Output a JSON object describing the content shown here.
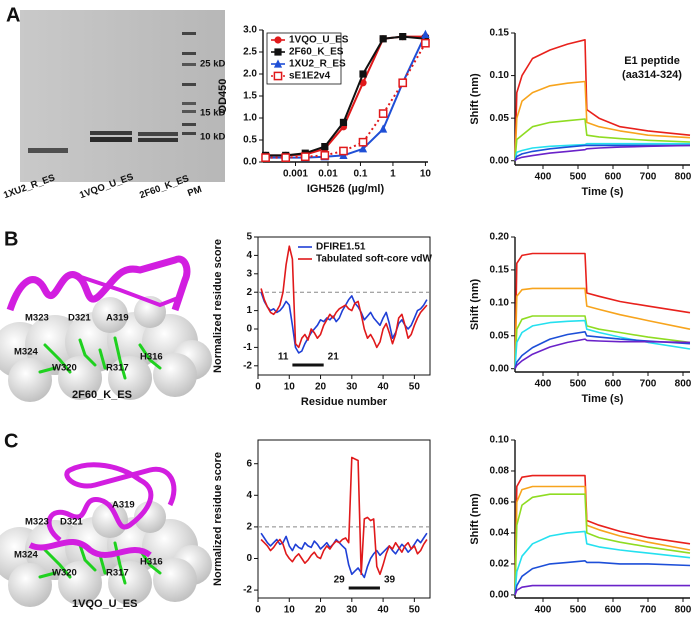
{
  "panel_labels": [
    "A",
    "B",
    "C"
  ],
  "gel": {
    "markers": [
      "25 kD",
      "15 kD",
      "10 kD"
    ],
    "lanes": [
      "1XU2_R_ES",
      "1VQO_U_ES",
      "2F60_K_ES",
      "PM"
    ]
  },
  "structures": [
    {
      "residues": [
        "M323",
        "D321",
        "A319",
        "M324",
        "W320",
        "R317",
        "H316"
      ],
      "caption": "2F60_K_ES"
    },
    {
      "residues": [
        "M323",
        "D321",
        "A319",
        "M324",
        "W320",
        "R317",
        "H316"
      ],
      "caption": "1VQO_U_ES"
    }
  ],
  "chart_data": [
    {
      "type": "scatter",
      "xlabel": "IGH526 (µg/ml)",
      "ylabel": "OD450",
      "xscale": "log",
      "x": [
        0.00012,
        0.0005,
        0.002,
        0.008,
        0.03,
        0.12,
        0.5,
        2,
        10
      ],
      "xlim": [
        0.0001,
        12
      ],
      "xticks": [
        0.001,
        0.01,
        0.1,
        1,
        10
      ],
      "ylim": [
        0,
        3
      ],
      "yticks": [
        {
          "value": 0,
          "label": "0.0"
        },
        {
          "value": 0.5,
          "label": "0.5"
        },
        {
          "value": 1,
          "label": "1.0"
        },
        {
          "value": 1.5,
          "label": "1.5"
        },
        {
          "value": 2,
          "label": "2.0"
        },
        {
          "value": 2.5,
          "label": "2.5"
        },
        {
          "value": 3,
          "label": "3.0"
        }
      ],
      "legend": "upper left",
      "series": [
        {
          "name": "1VQO_U_ES",
          "color": "#e0191b",
          "marker": "circle",
          "line_style": "solid",
          "values": [
            0.15,
            0.15,
            0.17,
            0.3,
            0.8,
            1.8,
            2.8,
            2.85,
            2.85
          ]
        },
        {
          "name": "2F60_K_ES",
          "color": "#111111",
          "marker": "square",
          "line_style": "solid",
          "values": [
            0.15,
            0.15,
            0.2,
            0.35,
            0.9,
            2.0,
            2.8,
            2.85,
            2.8
          ]
        },
        {
          "name": "1XU2_R_ES",
          "color": "#1f4fd6",
          "marker": "triangle",
          "line_style": "solid",
          "values": [
            0.1,
            0.1,
            0.1,
            0.12,
            0.15,
            0.3,
            0.75,
            1.8,
            2.9
          ]
        },
        {
          "name": "sE1E2v4",
          "color": "#e0191b",
          "marker": "open-square",
          "line_style": "dotted",
          "values": [
            0.1,
            0.1,
            0.12,
            0.15,
            0.25,
            0.45,
            1.1,
            1.8,
            2.7
          ]
        }
      ]
    },
    {
      "type": "line",
      "xlabel": "Time (s)",
      "ylabel": "Shift (nm)",
      "annotation": [
        "E1 peptide",
        "(aa314-324)"
      ],
      "x": [
        320,
        325,
        340,
        370,
        420,
        470,
        520,
        525,
        560,
        620,
        700,
        820
      ],
      "xlim": [
        320,
        820
      ],
      "xticks": [
        400,
        500,
        600,
        700,
        800
      ],
      "ylim": [
        -0.005,
        0.15
      ],
      "yticks": [
        {
          "value": 0,
          "label": "0.00"
        },
        {
          "value": 0.05,
          "label": "0.05"
        },
        {
          "value": 0.1,
          "label": "0.10"
        },
        {
          "value": 0.15,
          "label": "0.15"
        }
      ],
      "series": [
        {
          "color": "#e8211c",
          "values": [
            0,
            0.08,
            0.1,
            0.12,
            0.13,
            0.137,
            0.142,
            0.06,
            0.05,
            0.04,
            0.035,
            0.03
          ]
        },
        {
          "color": "#f7a41d",
          "values": [
            0,
            0.05,
            0.07,
            0.08,
            0.088,
            0.091,
            0.093,
            0.045,
            0.04,
            0.035,
            0.03,
            0.027
          ]
        },
        {
          "color": "#8fdc22",
          "values": [
            0,
            0.025,
            0.03,
            0.04,
            0.045,
            0.047,
            0.049,
            0.03,
            0.028,
            0.026,
            0.024,
            0.022
          ]
        },
        {
          "color": "#25e0ef",
          "values": [
            0,
            0.01,
            0.012,
            0.015,
            0.017,
            0.018,
            0.019,
            0.02,
            0.02,
            0.02,
            0.02,
            0.02
          ]
        },
        {
          "color": "#1d4fd8",
          "values": [
            0,
            0.005,
            0.008,
            0.011,
            0.014,
            0.016,
            0.018,
            0.018,
            0.018,
            0.018,
            0.018,
            0.018
          ]
        },
        {
          "color": "#6a22c9",
          "values": [
            0,
            0.002,
            0.004,
            0.006,
            0.009,
            0.011,
            0.013,
            0.014,
            0.015,
            0.016,
            0.017,
            0.018
          ]
        }
      ]
    },
    {
      "type": "line",
      "xlabel": "Residue number",
      "ylabel": "Normalized residue score",
      "threshold": 2,
      "range": [
        11,
        21
      ],
      "legend": "upper left",
      "x": [
        1,
        2,
        3,
        4,
        5,
        6,
        7,
        8,
        9,
        10,
        11,
        12,
        13,
        14,
        15,
        16,
        17,
        18,
        19,
        20,
        21,
        22,
        23,
        24,
        25,
        26,
        27,
        28,
        29,
        30,
        31,
        32,
        33,
        34,
        35,
        36,
        37,
        38,
        39,
        40,
        41,
        42,
        43,
        44,
        45,
        46,
        47,
        48,
        49,
        50,
        51,
        52,
        53,
        54
      ],
      "xlim": [
        0,
        55
      ],
      "xticks": [
        0,
        10,
        20,
        30,
        40,
        50
      ],
      "ylim": [
        -2.5,
        5
      ],
      "yticks": [
        -2,
        -1,
        0,
        1,
        2,
        3,
        4,
        5
      ],
      "series": [
        {
          "name": "DFIRE1.51",
          "color": "#1f3fd6",
          "values": [
            2.0,
            1.5,
            1.2,
            1.0,
            1.1,
            0.9,
            1.0,
            1.2,
            1.5,
            1.3,
            0.2,
            -1.0,
            -1.3,
            -1.2,
            -0.8,
            -0.5,
            -0.2,
            0.0,
            0.2,
            0.5,
            0.4,
            0.6,
            0.5,
            0.7,
            0.4,
            0.6,
            1.0,
            1.3,
            1.6,
            1.8,
            1.4,
            1.2,
            0.9,
            0.5,
            0.7,
            0.9,
            0.6,
            0.4,
            0.2,
            0.6,
            0.9,
            0.3,
            -0.5,
            -0.2,
            0.3,
            0.5,
            0.2,
            0.0,
            0.2,
            0.6,
            1.0,
            1.1,
            1.3,
            1.6
          ]
        },
        {
          "name": "Tabulated soft-core vdW",
          "color": "#e0191b",
          "values": [
            2.2,
            1.6,
            1.2,
            0.9,
            0.8,
            1.0,
            1.3,
            2.0,
            3.5,
            4.5,
            3.8,
            -0.8,
            -1.0,
            -0.5,
            -0.3,
            -0.6,
            0.0,
            -0.2,
            -0.5,
            -0.3,
            0.2,
            0.5,
            0.8,
            0.6,
            0.9,
            1.1,
            1.2,
            1.3,
            1.1,
            1.0,
            1.4,
            1.5,
            0.8,
            0.0,
            -0.5,
            -0.3,
            -0.6,
            -1.0,
            -0.7,
            0.0,
            0.3,
            -0.2,
            -0.8,
            -0.3,
            0.6,
            0.8,
            0.2,
            -0.5,
            -0.3,
            0.2,
            0.6,
            0.9,
            1.1,
            1.3
          ]
        }
      ]
    },
    {
      "type": "line",
      "xlabel": "Time (s)",
      "ylabel": "Shift (nm)",
      "x": [
        320,
        325,
        340,
        370,
        420,
        470,
        520,
        525,
        560,
        620,
        700,
        820
      ],
      "xlim": [
        320,
        820
      ],
      "xticks": [
        400,
        500,
        600,
        700,
        800
      ],
      "ylim": [
        -0.005,
        0.2
      ],
      "yticks": [
        {
          "value": 0,
          "label": "0.00"
        },
        {
          "value": 0.05,
          "label": "0.05"
        },
        {
          "value": 0.1,
          "label": "0.10"
        },
        {
          "value": 0.15,
          "label": "0.15"
        },
        {
          "value": 0.2,
          "label": "0.20"
        }
      ],
      "series": [
        {
          "color": "#e8211c",
          "values": [
            0,
            0.16,
            0.172,
            0.175,
            0.175,
            0.175,
            0.175,
            0.115,
            0.11,
            0.102,
            0.095,
            0.085
          ]
        },
        {
          "color": "#f7a41d",
          "values": [
            0,
            0.11,
            0.12,
            0.122,
            0.122,
            0.122,
            0.122,
            0.095,
            0.09,
            0.082,
            0.073,
            0.06
          ]
        },
        {
          "color": "#8fdc22",
          "values": [
            0,
            0.06,
            0.075,
            0.08,
            0.08,
            0.08,
            0.08,
            0.065,
            0.06,
            0.055,
            0.048,
            0.04
          ]
        },
        {
          "color": "#25e0ef",
          "values": [
            0,
            0.04,
            0.055,
            0.065,
            0.07,
            0.072,
            0.073,
            0.06,
            0.055,
            0.048,
            0.04,
            0.03
          ]
        },
        {
          "color": "#1d4fd8",
          "values": [
            0,
            0.01,
            0.02,
            0.032,
            0.045,
            0.052,
            0.056,
            0.05,
            0.048,
            0.045,
            0.042,
            0.038
          ]
        },
        {
          "color": "#6a22c9",
          "values": [
            0,
            0.005,
            0.012,
            0.022,
            0.033,
            0.04,
            0.045,
            0.043,
            0.042,
            0.041,
            0.041,
            0.04
          ]
        }
      ]
    },
    {
      "type": "line",
      "xlabel": "Residue number",
      "ylabel": "Normalized residue score",
      "threshold": 2,
      "range": [
        29,
        39
      ],
      "x": [
        1,
        2,
        3,
        4,
        5,
        6,
        7,
        8,
        9,
        10,
        11,
        12,
        13,
        14,
        15,
        16,
        17,
        18,
        19,
        20,
        21,
        22,
        23,
        24,
        25,
        26,
        27,
        28,
        29,
        30,
        31,
        32,
        33,
        34,
        35,
        36,
        37,
        38,
        39,
        40,
        41,
        42,
        43,
        44,
        45,
        46,
        47,
        48,
        49,
        50,
        51,
        52,
        53,
        54
      ],
      "xlim": [
        0,
        55
      ],
      "xticks": [
        0,
        10,
        20,
        30,
        40,
        50
      ],
      "ylim": [
        -2.5,
        7.5
      ],
      "yticks": [
        -2,
        0,
        2,
        4,
        6
      ],
      "series": [
        {
          "color": "#1f3fd6",
          "values": [
            1.6,
            1.3,
            1.0,
            0.8,
            1.0,
            1.2,
            0.9,
            1.0,
            1.4,
            0.8,
            0.5,
            0.9,
            0.7,
            0.6,
            1.0,
            0.8,
            0.7,
            1.1,
            0.9,
            0.6,
            0.8,
            1.0,
            0.7,
            0.9,
            1.2,
            1.0,
            0.8,
            0.6,
            -0.4,
            -1.0,
            -0.8,
            -0.6,
            -0.9,
            -1.2,
            -0.5,
            0.0,
            0.3,
            0.5,
            0.2,
            0.4,
            0.6,
            0.8,
            0.5,
            0.3,
            0.6,
            0.9,
            0.7,
            0.4,
            0.6,
            0.9,
            1.2,
            1.0,
            1.3,
            1.6
          ]
        },
        {
          "color": "#e0191b",
          "values": [
            1.2,
            1.0,
            0.8,
            0.5,
            0.7,
            1.0,
            1.2,
            0.9,
            0.3,
            0.0,
            -0.2,
            0.1,
            0.3,
            0.0,
            -0.3,
            -0.1,
            0.2,
            0.4,
            0.1,
            0.0,
            0.5,
            0.8,
            0.6,
            0.9,
            1.1,
            1.0,
            1.2,
            1.3,
            1.0,
            6.4,
            6.3,
            6.2,
            -1.0,
            2.5,
            2.6,
            2.4,
            2.5,
            -0.5,
            -1.0,
            -0.4,
            0.3,
            0.8,
            0.6,
            1.0,
            0.7,
            0.4,
            0.8,
            1.0,
            0.6,
            0.8,
            0.3,
            0.5,
            0.9,
            1.2
          ]
        }
      ]
    },
    {
      "type": "line",
      "xlabel": "Time (s)",
      "ylabel": "Shift (nm)",
      "x": [
        320,
        325,
        340,
        370,
        420,
        470,
        520,
        525,
        560,
        620,
        700,
        820
      ],
      "xlim": [
        320,
        820
      ],
      "xticks": [
        400,
        500,
        600,
        700,
        800
      ],
      "ylim": [
        -0.002,
        0.1
      ],
      "yticks": [
        {
          "value": 0,
          "label": "0.00"
        },
        {
          "value": 0.02,
          "label": "0.02"
        },
        {
          "value": 0.04,
          "label": "0.04"
        },
        {
          "value": 0.06,
          "label": "0.06"
        },
        {
          "value": 0.08,
          "label": "0.08"
        },
        {
          "value": 0.1,
          "label": "0.10"
        }
      ],
      "series": [
        {
          "color": "#e8211c",
          "values": [
            0,
            0.07,
            0.076,
            0.077,
            0.077,
            0.077,
            0.077,
            0.048,
            0.045,
            0.041,
            0.037,
            0.033
          ]
        },
        {
          "color": "#f7a41d",
          "values": [
            0,
            0.06,
            0.068,
            0.07,
            0.07,
            0.07,
            0.07,
            0.045,
            0.042,
            0.038,
            0.034,
            0.029
          ]
        },
        {
          "color": "#8fdc22",
          "values": [
            0,
            0.045,
            0.058,
            0.063,
            0.065,
            0.065,
            0.065,
            0.04,
            0.037,
            0.034,
            0.031,
            0.027
          ]
        },
        {
          "color": "#25e0ef",
          "values": [
            0,
            0.015,
            0.025,
            0.033,
            0.038,
            0.04,
            0.041,
            0.033,
            0.031,
            0.029,
            0.027,
            0.024
          ]
        },
        {
          "color": "#1d4fd8",
          "values": [
            0,
            0.006,
            0.012,
            0.017,
            0.02,
            0.021,
            0.022,
            0.021,
            0.021,
            0.02,
            0.02,
            0.019
          ]
        },
        {
          "color": "#6a22c9",
          "values": [
            0,
            0.003,
            0.005,
            0.006,
            0.006,
            0.006,
            0.006,
            0.006,
            0.006,
            0.006,
            0.006,
            0.006
          ]
        }
      ]
    }
  ]
}
